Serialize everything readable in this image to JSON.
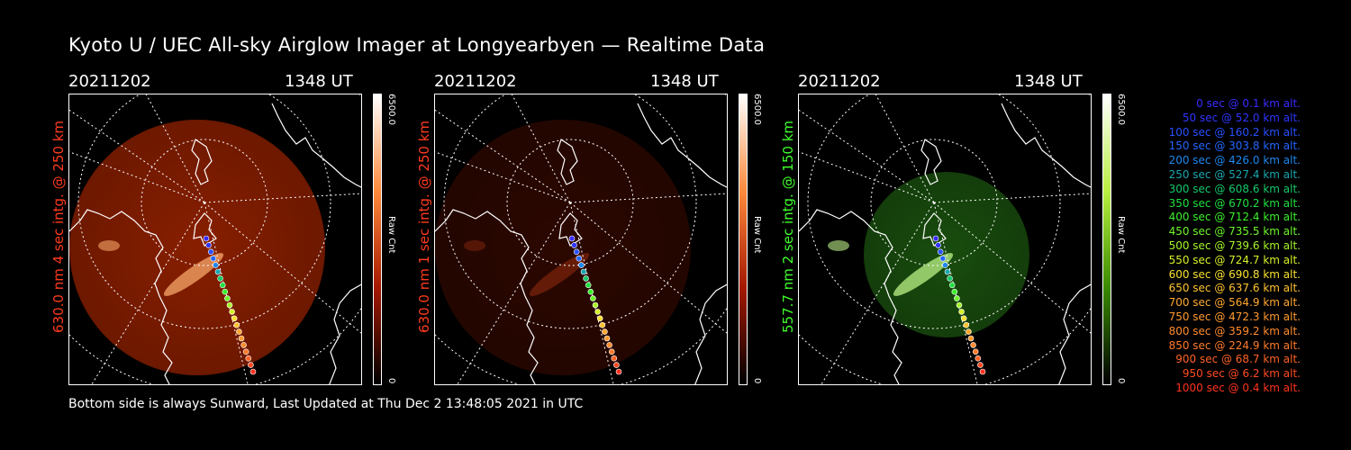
{
  "title": "Kyoto U / UEC All-sky Airglow Imager at Longyearbyen — Realtime Data",
  "footer": "Bottom side is always Sunward, Last Updated at Thu Dec  2 13:48:05 2021 in UTC",
  "panels": [
    {
      "date": "20211202",
      "time": "1348 UT",
      "label": "630.0 nm 4 sec intg. @ 250 km",
      "label_color": "#ff3b1f",
      "colorbar_max": "6500.0",
      "colorbar_min": "0",
      "colorbar_unit": "Raw Cnt",
      "colorbar_colors": [
        "#ffffff",
        "#ff8a3c",
        "#a51800",
        "#000000"
      ]
    },
    {
      "date": "20211202",
      "time": "1348 UT",
      "label": "630.0 nm 1 sec intg. @ 250 km",
      "label_color": "#ff3b1f",
      "colorbar_max": "6500.0",
      "colorbar_min": "0",
      "colorbar_unit": "Raw Cnt",
      "colorbar_colors": [
        "#ffffff",
        "#ff8a3c",
        "#a51800",
        "#000000"
      ]
    },
    {
      "date": "20211202",
      "time": "1348 UT",
      "label": "557.7 nm 2 sec intg. @ 150 km",
      "label_color": "#3fff2b",
      "colorbar_max": "6500.0",
      "colorbar_min": "0",
      "colorbar_unit": "Raw Cnt",
      "colorbar_colors": [
        "#ffffff",
        "#b8f040",
        "#3a8a00",
        "#000000"
      ]
    }
  ],
  "legend": [
    {
      "text": "0 sec @    0.1 km alt.",
      "color": "#3a2bff"
    },
    {
      "text": "50 sec @   52.0 km alt.",
      "color": "#2f35ff"
    },
    {
      "text": "100 sec @  160.2 km alt.",
      "color": "#2850ff"
    },
    {
      "text": "150 sec @  303.8 km alt.",
      "color": "#2266ff"
    },
    {
      "text": "200 sec @  426.0 km alt.",
      "color": "#1e88ee"
    },
    {
      "text": "250 sec @  527.4 km alt.",
      "color": "#19a6b0"
    },
    {
      "text": "300 sec @  608.6 km alt.",
      "color": "#15c96a"
    },
    {
      "text": "350 sec @  670.2 km alt.",
      "color": "#20e040"
    },
    {
      "text": "400 sec @  712.4 km alt.",
      "color": "#3cf02c"
    },
    {
      "text": "450 sec @  735.5 km alt.",
      "color": "#6cf52a"
    },
    {
      "text": "500 sec @  739.6 km alt.",
      "color": "#a6f52a"
    },
    {
      "text": "550 sec @  724.7 km alt.",
      "color": "#d8f02a"
    },
    {
      "text": "600 sec @  690.8 km alt.",
      "color": "#f8e030"
    },
    {
      "text": "650 sec @  637.6 km alt.",
      "color": "#ffc230"
    },
    {
      "text": "700 sec @  564.9 km alt.",
      "color": "#ffa830"
    },
    {
      "text": "750 sec @  472.3 km alt.",
      "color": "#ff9a30"
    },
    {
      "text": "800 sec @  359.2 km alt.",
      "color": "#ff8c2e"
    },
    {
      "text": "850 sec @  224.9 km alt.",
      "color": "#ff7a2a"
    },
    {
      "text": "900 sec @   68.7 km alt.",
      "color": "#ff6226"
    },
    {
      "text": "950 sec @    6.2 km alt.",
      "color": "#ff4a22"
    },
    {
      "text": "1000 sec @    0.4 km alt.",
      "color": "#ff3320"
    }
  ]
}
